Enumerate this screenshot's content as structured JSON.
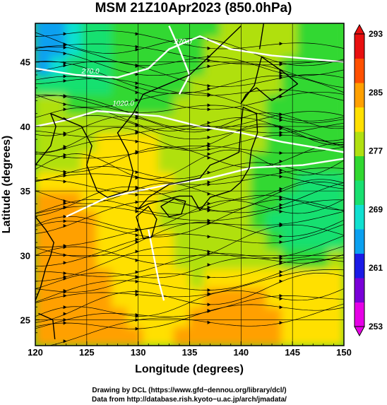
{
  "chart_data": {
    "type": "heatmap",
    "title": "MSM 21Z10Apr2023 (850.0hPa)",
    "xlabel": "Longitude (degrees)",
    "ylabel": "Latitude  (degrees)",
    "xlim": [
      120,
      150
    ],
    "ylim": [
      23,
      48
    ],
    "x_ticks": [
      120,
      125,
      130,
      135,
      140,
      145,
      150
    ],
    "y_ticks": [
      25,
      30,
      35,
      40,
      45
    ],
    "x_tick_labels": [
      "120",
      "125",
      "130",
      "135",
      "140",
      "145",
      "150"
    ],
    "y_tick_labels": [
      "25",
      "30",
      "35",
      "40",
      "45"
    ],
    "grid": true,
    "colorbar": {
      "min": 253,
      "max": 293,
      "ticks": [
        253,
        261,
        269,
        277,
        285,
        293
      ],
      "tick_labels": [
        "253",
        "261",
        "269",
        "277",
        "285",
        "293"
      ],
      "colors": [
        "#e600e6",
        "#7a00d8",
        "#1a1ae6",
        "#0aa0f0",
        "#10e0d0",
        "#18e070",
        "#30d830",
        "#b0e010",
        "#ffe000",
        "#ffa000",
        "#ff5000",
        "#e81010"
      ]
    },
    "temperature_samples_K": [
      {
        "lon": 121,
        "lat": 47,
        "value": 265
      },
      {
        "lon": 125,
        "lat": 45,
        "value": 270
      },
      {
        "lon": 130,
        "lat": 46,
        "value": 275
      },
      {
        "lon": 122,
        "lat": 40,
        "value": 278
      },
      {
        "lon": 128,
        "lat": 37,
        "value": 281
      },
      {
        "lon": 122,
        "lat": 33,
        "value": 284
      },
      {
        "lon": 140,
        "lat": 42,
        "value": 277
      },
      {
        "lon": 145,
        "lat": 40,
        "value": 276
      },
      {
        "lon": 147,
        "lat": 33,
        "value": 271
      },
      {
        "lon": 137,
        "lat": 32,
        "value": 278
      },
      {
        "lon": 130,
        "lat": 28,
        "value": 282
      },
      {
        "lon": 125,
        "lat": 25,
        "value": 286
      },
      {
        "lon": 140,
        "lat": 24,
        "value": 285
      },
      {
        "lon": 148,
        "lat": 26,
        "value": 282
      }
    ],
    "contour_labels": [
      "270.0",
      "1020.0",
      "270.0"
    ],
    "streamline_direction": "west-to-east"
  },
  "credits": {
    "line1": "Drawing by DCL (https://www.gfd−dennou.org/library/dcl/)",
    "line2": "Data from http://database.rish.kyoto−u.ac.jp/arch/jmadata/"
  }
}
